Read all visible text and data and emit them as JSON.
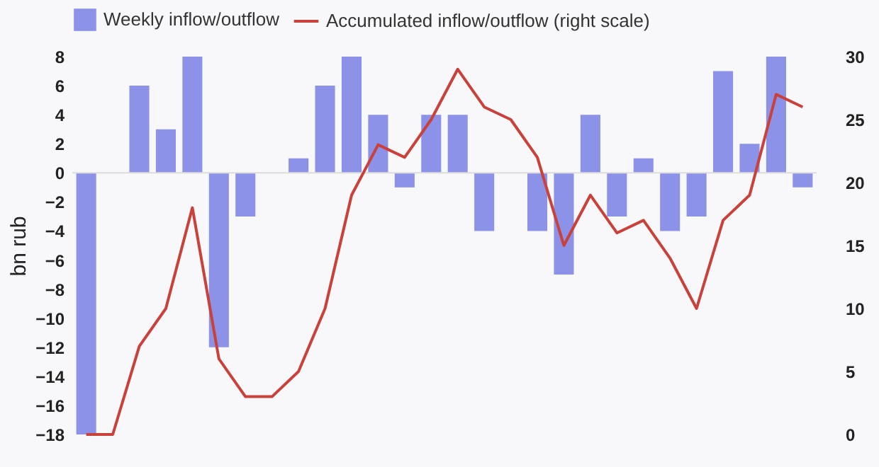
{
  "chart_data": {
    "type": "bar",
    "ylabel": "bn rub",
    "categories": [
      null,
      null,
      null,
      null,
      null,
      null,
      null,
      null,
      null,
      null,
      null,
      null,
      null,
      null,
      null,
      null,
      null,
      null,
      null,
      null,
      null,
      null,
      null,
      null,
      null,
      null,
      null,
      null
    ],
    "series": [
      {
        "name": "Weekly inflow/outflow",
        "color": "#8b92e8",
        "values": [
          -18,
          null,
          6,
          3,
          8,
          -12,
          -3,
          null,
          1,
          6,
          8,
          4,
          -1,
          4,
          4,
          -4,
          null,
          -4,
          -7,
          4,
          -3,
          1,
          -4,
          -3,
          7,
          2,
          8,
          -1
        ]
      },
      {
        "name": "Accumulated inflow/outflow (right scale)",
        "type": "line",
        "axis": "y2",
        "color": "#c8413a",
        "values": [
          0,
          0,
          7,
          10,
          18,
          6,
          3,
          3,
          5,
          10,
          19,
          23,
          22,
          25,
          29,
          26,
          25,
          22,
          15,
          19,
          16,
          17,
          14,
          10,
          17,
          19,
          27,
          26
        ]
      }
    ],
    "ylim": [
      -18,
      8
    ],
    "yticks": [
      -18,
      -16,
      -14,
      -12,
      -10,
      -8,
      -6,
      -4,
      -2,
      0,
      2,
      4,
      6,
      8
    ],
    "y2lim": [
      0,
      30
    ],
    "y2ticks": [
      0,
      5,
      10,
      15,
      20,
      25,
      30
    ],
    "ref_lines": [
      {
        "axis": "y",
        "value": 0,
        "color": "#dcdcdc"
      }
    ],
    "grid": false,
    "legend": "top",
    "tick_labels": "y"
  }
}
